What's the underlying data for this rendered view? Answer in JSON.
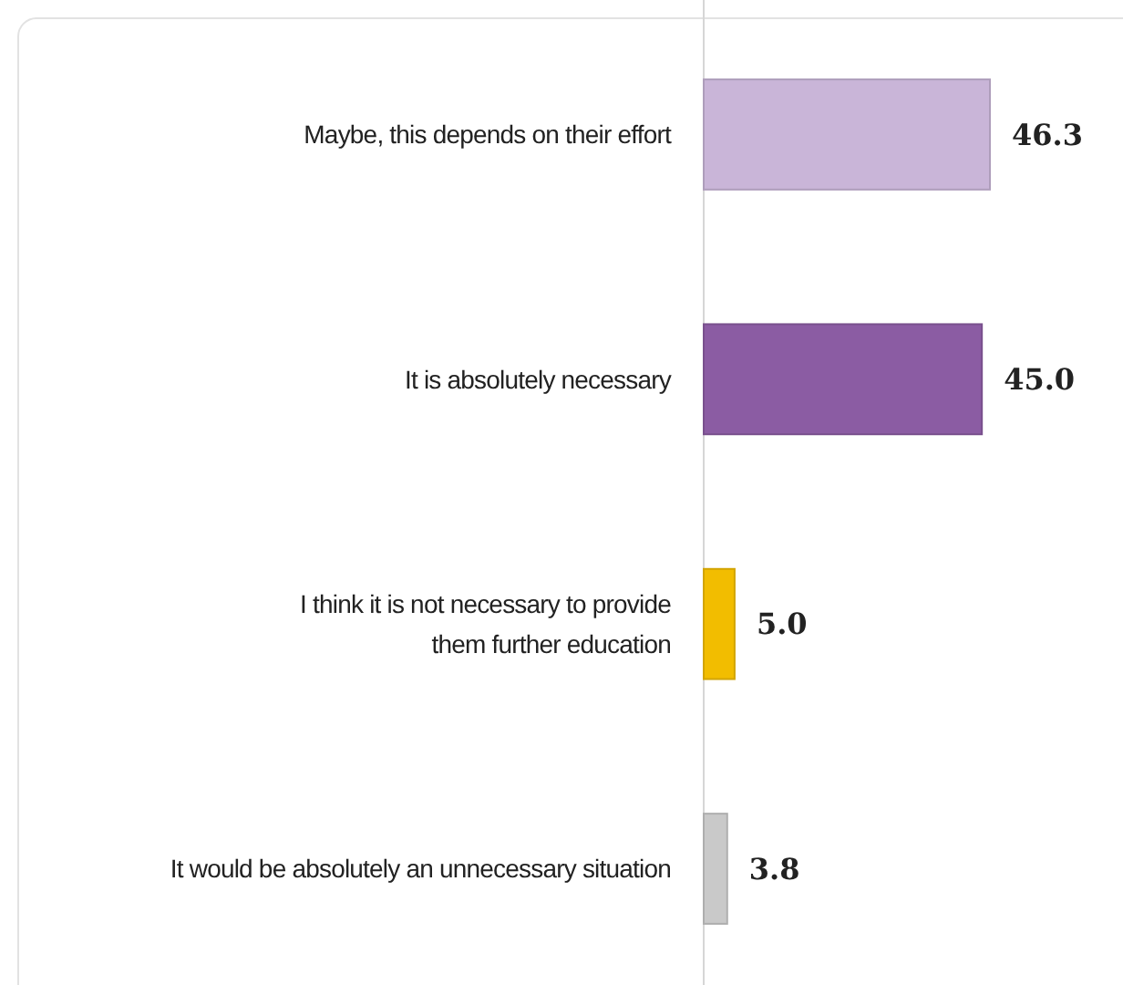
{
  "chart_data": {
    "type": "bar",
    "orientation": "horizontal",
    "categories": [
      "Maybe, this depends on their effort",
      "It is absolutely necessary",
      "I think it is not necessary to provide them further education",
      "It would be absolutely an unnecessary situation"
    ],
    "values": [
      46.3,
      45.0,
      5.0,
      3.8
    ],
    "colors": [
      "#c9b5d8",
      "#8b5ca3",
      "#f2bd00",
      "#c9c9c9"
    ],
    "value_labels": [
      "46.3",
      "45.0",
      "5.0",
      "3.8"
    ]
  }
}
